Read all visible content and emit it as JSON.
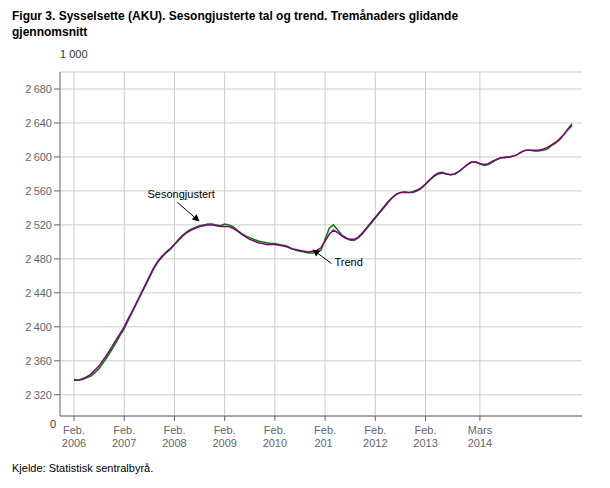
{
  "chart_data": {
    "type": "line",
    "title": "Figur 3. Sysselsette (AKU). Sesongjusterte tal og trend. Tremånaders glidande\ngjennomsnitt",
    "ylabel": "1 000",
    "source": "Kjelde: Statistisk sentralbyrå.",
    "categories": [
      "Feb.\n2006",
      null,
      null,
      null,
      null,
      null,
      null,
      null,
      null,
      null,
      null,
      null,
      "Feb.\n2007",
      null,
      null,
      null,
      null,
      null,
      null,
      null,
      null,
      null,
      null,
      null,
      "Feb.\n2008",
      null,
      null,
      null,
      null,
      null,
      null,
      null,
      null,
      null,
      null,
      null,
      "Feb.\n2009",
      null,
      null,
      null,
      null,
      null,
      null,
      null,
      null,
      null,
      null,
      null,
      "Feb.\n2010",
      null,
      null,
      null,
      null,
      null,
      null,
      null,
      null,
      null,
      null,
      null,
      "Feb.\n201 ",
      null,
      null,
      null,
      null,
      null,
      null,
      null,
      null,
      null,
      null,
      null,
      "Feb.\n2012",
      null,
      null,
      null,
      null,
      null,
      null,
      null,
      null,
      null,
      null,
      null,
      "Feb.\n2013",
      null,
      null,
      null,
      null,
      null,
      null,
      null,
      null,
      null,
      null,
      null,
      null,
      "Mars\n2014",
      null,
      null,
      null,
      null,
      null,
      null,
      null,
      null,
      null,
      null,
      null,
      null,
      null,
      null,
      null,
      null,
      null,
      null,
      null,
      null,
      null,
      null
    ],
    "series": [
      {
        "color": "#008000",
        "values": [
          2338,
          2337,
          2338,
          2340,
          2342,
          2346,
          2351,
          2358,
          2365,
          2373,
          2381,
          2390,
          2398,
          2408,
          2418,
          2428,
          2438,
          2448,
          2458,
          2468,
          2476,
          2482,
          2487,
          2491,
          2497,
          2503,
          2508,
          2512,
          2515,
          2517,
          2519,
          2520,
          2521,
          2521,
          2520,
          2519,
          2521,
          2520,
          2518,
          2514,
          2510,
          2507,
          2505,
          2503,
          2501,
          2500,
          2499,
          2498,
          2498,
          2497,
          2496,
          2495,
          2492,
          2490,
          2489,
          2488,
          2487,
          2487,
          2488,
          2490,
          2503,
          2516,
          2520,
          2514,
          2508,
          2505,
          2502,
          2502,
          2505,
          2510,
          2516,
          2522,
          2528,
          2534,
          2540,
          2546,
          2552,
          2556,
          2558,
          2559,
          2558,
          2558,
          2560,
          2563,
          2568,
          2573,
          2578,
          2581,
          2582,
          2580,
          2579,
          2580,
          2583,
          2587,
          2591,
          2594,
          2594,
          2592,
          2590,
          2591,
          2594,
          2597,
          2599,
          2600,
          2600,
          2601,
          2603,
          2606,
          2608,
          2608,
          2607,
          2607,
          2608,
          2609,
          2613,
          2616,
          2620,
          2626,
          2633,
          2639
        ]
      },
      {
        "color": "#800080",
        "values": [
          2337,
          2337,
          2339,
          2341,
          2344,
          2349,
          2354,
          2361,
          2368,
          2376,
          2384,
          2392,
          2400,
          2410,
          2419,
          2429,
          2439,
          2449,
          2459,
          2469,
          2477,
          2483,
          2488,
          2492,
          2497,
          2502,
          2507,
          2511,
          2514,
          2516,
          2518,
          2519,
          2520,
          2520,
          2519,
          2518,
          2518,
          2518,
          2516,
          2513,
          2509,
          2506,
          2503,
          2501,
          2499,
          2498,
          2497,
          2497,
          2497,
          2496,
          2495,
          2494,
          2492,
          2491,
          2490,
          2489,
          2488,
          2489,
          2490,
          2493,
          2501,
          2509,
          2514,
          2511,
          2507,
          2504,
          2503,
          2503,
          2506,
          2511,
          2517,
          2523,
          2529,
          2535,
          2541,
          2547,
          2552,
          2556,
          2558,
          2558,
          2558,
          2559,
          2561,
          2564,
          2568,
          2573,
          2577,
          2580,
          2581,
          2580,
          2579,
          2580,
          2583,
          2587,
          2591,
          2594,
          2594,
          2592,
          2591,
          2592,
          2595,
          2597,
          2599,
          2599,
          2600,
          2601,
          2603,
          2606,
          2608,
          2608,
          2608,
          2608,
          2609,
          2611,
          2614,
          2617,
          2621,
          2626,
          2632,
          2637
        ]
      }
    ],
    "ylim": [
      2295,
      2700
    ],
    "yticks": [
      {
        "value": 2320,
        "label": "2 320"
      },
      {
        "value": 2360,
        "label": "2 360"
      },
      {
        "value": 2400,
        "label": "2 400"
      },
      {
        "value": 2440,
        "label": "2 440"
      },
      {
        "value": 2480,
        "label": "2 480"
      },
      {
        "value": 2520,
        "label": "2 520"
      },
      {
        "value": 2560,
        "label": "2 560"
      },
      {
        "value": 2600,
        "label": "2 600"
      },
      {
        "value": 2640,
        "label": "2 640"
      },
      {
        "value": 2680,
        "label": "2 680"
      }
    ],
    "grid": true,
    "annotations": [
      {
        "text": "Sesongjustert",
        "x": 30,
        "y": 2524
      },
      {
        "text": "Trend",
        "x": 57,
        "y": 2491
      },
      {
        "text": "0"
      }
    ]
  }
}
